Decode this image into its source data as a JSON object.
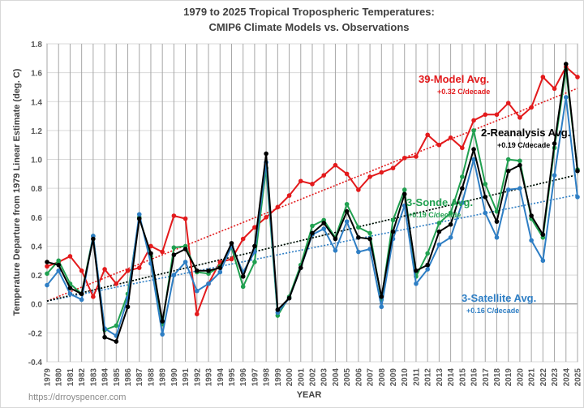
{
  "chart_data": {
    "type": "line",
    "title": [
      "1979 to 2025 Tropical Tropospheric Temperatures:",
      "CMIP6 Climate Models vs. Observations"
    ],
    "xlabel": "YEAR",
    "ylabel": "Temperature Departure from 1979 Linear Estimate (deg. C)",
    "ylim": [
      -0.4,
      1.8
    ],
    "yticks": [
      "-0.4",
      "-0.2",
      "0.0",
      "0.2",
      "0.4",
      "0.6",
      "0.8",
      "1.0",
      "1.2",
      "1.4",
      "1.6",
      "1.8"
    ],
    "grid": true,
    "x": [
      1979,
      1980,
      1981,
      1982,
      1983,
      1984,
      1985,
      1986,
      1987,
      1988,
      1989,
      1990,
      1991,
      1992,
      1993,
      1994,
      1995,
      1996,
      1997,
      1998,
      1999,
      2000,
      2001,
      2002,
      2003,
      2004,
      2005,
      2006,
      2007,
      2008,
      2009,
      2010,
      2011,
      2012,
      2013,
      2014,
      2015,
      2016,
      2017,
      2018,
      2019,
      2020,
      2021,
      2022,
      2023,
      2024,
      2025
    ],
    "series": [
      {
        "name": "39-Model Avg.",
        "trend_label": "+0.32 C/decade",
        "trend_per_decade": 0.32,
        "trend_1979": 0.02,
        "color": "#e31a1c",
        "values": [
          0.26,
          0.29,
          0.33,
          0.23,
          0.05,
          0.24,
          0.14,
          0.23,
          0.25,
          0.4,
          0.36,
          0.61,
          0.59,
          -0.07,
          0.14,
          0.29,
          0.31,
          0.45,
          0.53,
          0.6,
          0.67,
          0.75,
          0.85,
          0.83,
          0.89,
          0.96,
          0.9,
          0.79,
          0.88,
          0.91,
          0.94,
          1.01,
          1.02,
          1.17,
          1.1,
          1.15,
          1.08,
          1.27,
          1.31,
          1.31,
          1.39,
          1.29,
          1.36,
          1.57,
          1.49,
          1.64,
          1.57
        ]
      },
      {
        "name": "3-Sonde Avg.",
        "trend_label": "+0.19 C/decade",
        "trend_per_decade": 0.19,
        "trend_1979": 0.02,
        "color": "#20a050",
        "values": [
          0.21,
          0.3,
          0.14,
          0.07,
          0.47,
          -0.18,
          -0.15,
          0.07,
          0.6,
          0.33,
          -0.14,
          0.39,
          0.4,
          0.22,
          0.21,
          0.26,
          0.39,
          0.12,
          0.29,
          0.94,
          -0.08,
          0.05,
          0.27,
          0.54,
          0.58,
          0.46,
          0.69,
          0.53,
          0.49,
          0.03,
          0.58,
          0.79,
          0.19,
          0.35,
          0.56,
          0.63,
          0.88,
          1.2,
          0.83,
          0.64,
          1.0,
          0.99,
          0.59,
          0.46,
          1.08,
          1.62,
          0.93
        ]
      },
      {
        "name": "3-Satellite Avg.",
        "trend_label": "+0.16 C/decade",
        "trend_per_decade": 0.16,
        "trend_1979": 0.02,
        "color": "#2e7ec4",
        "values": [
          0.13,
          0.23,
          0.07,
          0.03,
          0.47,
          -0.17,
          -0.22,
          0.04,
          0.62,
          0.28,
          -0.21,
          0.2,
          0.29,
          0.09,
          0.14,
          0.22,
          0.4,
          0.22,
          0.36,
          0.98,
          -0.06,
          0.04,
          0.25,
          0.48,
          0.52,
          0.37,
          0.57,
          0.36,
          0.38,
          -0.02,
          0.45,
          0.68,
          0.14,
          0.24,
          0.41,
          0.46,
          0.7,
          1.0,
          0.63,
          0.46,
          0.79,
          0.8,
          0.44,
          0.3,
          0.89,
          1.43,
          0.74
        ]
      },
      {
        "name": "2-Reanalysis Avg.",
        "trend_label": "+0.19 C/decade",
        "trend_per_decade": 0.19,
        "trend_1979": 0.02,
        "color": "#000000",
        "values": [
          0.29,
          0.27,
          0.11,
          0.07,
          0.45,
          -0.23,
          -0.26,
          -0.02,
          0.59,
          0.35,
          -0.12,
          0.34,
          0.38,
          0.23,
          0.23,
          0.25,
          0.42,
          0.19,
          0.4,
          1.04,
          -0.04,
          0.04,
          0.25,
          0.49,
          0.56,
          0.45,
          0.64,
          0.46,
          0.45,
          0.05,
          0.5,
          0.76,
          0.23,
          0.27,
          0.5,
          0.55,
          0.8,
          1.07,
          0.74,
          0.57,
          0.92,
          0.96,
          0.61,
          0.48,
          1.11,
          1.66,
          0.92
        ]
      }
    ]
  },
  "footer": {
    "url": "https://drroyspencer.com"
  }
}
